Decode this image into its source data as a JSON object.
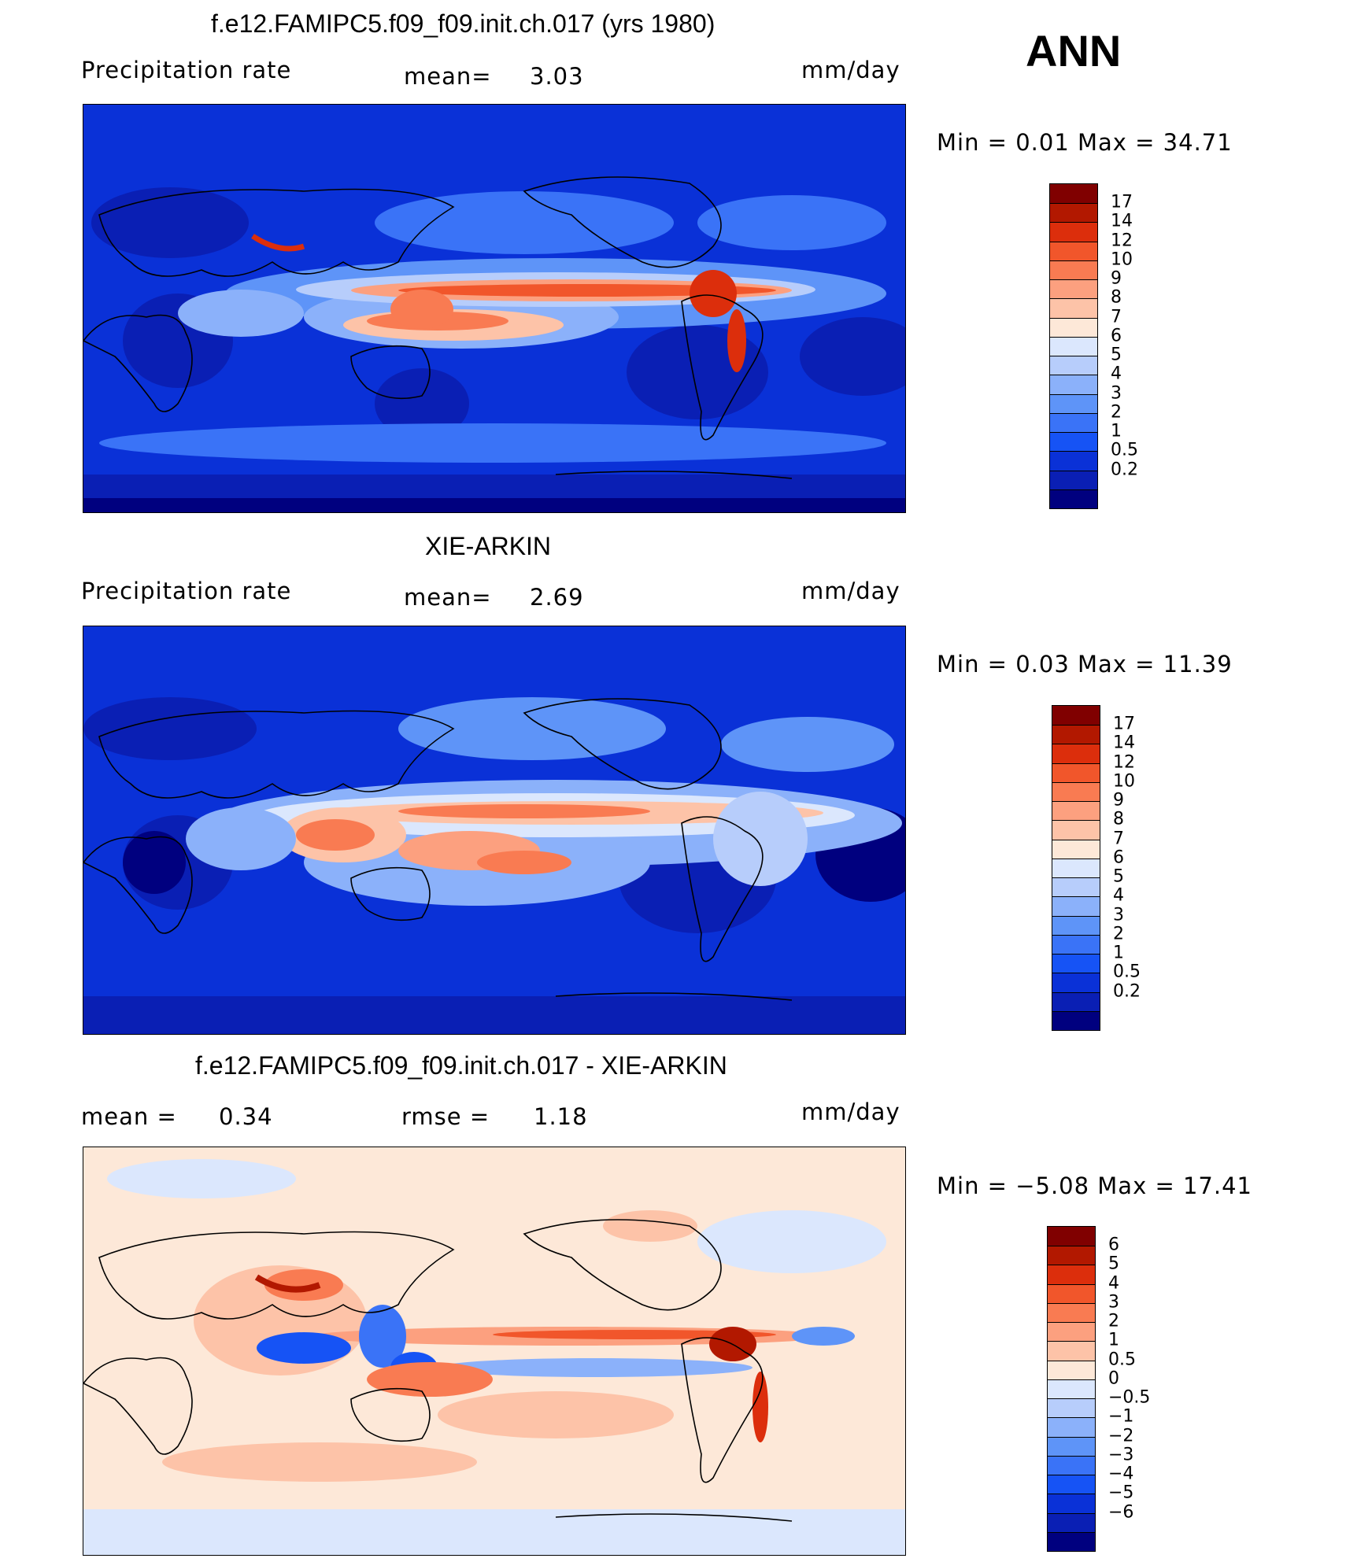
{
  "season": "ANN",
  "units": "mm/day",
  "panels": [
    {
      "id": "model",
      "title": "f.e12.FAMIPC5.f09_f09.init.ch.017 (yrs 1980)",
      "variable": "Precipitation  rate",
      "stat1_label": "mean=",
      "stat1_value": "3.03",
      "units": "mm/day",
      "range_label": "Min  =     0.01  Max  =    34.71",
      "colorbar_labels": [
        "17",
        "14",
        "12",
        "10",
        "9",
        "8",
        "7",
        "6",
        "5",
        "4",
        "3",
        "2",
        "1",
        "0.5",
        "0.2"
      ]
    },
    {
      "id": "obs",
      "title": "XIE-ARKIN",
      "variable": "Precipitation  rate",
      "stat1_label": "mean=",
      "stat1_value": "2.69",
      "units": "mm/day",
      "range_label": "Min  =     0.03  Max  =    11.39",
      "colorbar_labels": [
        "17",
        "14",
        "12",
        "10",
        "9",
        "8",
        "7",
        "6",
        "5",
        "4",
        "3",
        "2",
        "1",
        "0.5",
        "0.2"
      ]
    },
    {
      "id": "diff",
      "title": "f.e12.FAMIPC5.f09_f09.init.ch.017 - XIE-ARKIN",
      "stat1_label": "mean  =",
      "stat1_value": "0.34",
      "stat2_label": "rmse  =",
      "stat2_value": "1.18",
      "units": "mm/day",
      "range_label": "Min  =   −5.08  Max  =    17.41",
      "colorbar_labels": [
        "6",
        "5",
        "4",
        "3",
        "2",
        "1",
        "0.5",
        "0",
        "−0.5",
        "−1",
        "−2",
        "−3",
        "−4",
        "−5",
        "−6"
      ]
    }
  ],
  "chart_data": [
    {
      "type": "heatmap",
      "title": "f.e12.FAMIPC5.f09_f09.init.ch.017 (yrs 1980)",
      "variable": "Precipitation rate",
      "units": "mm/day",
      "mean": 3.03,
      "min": 0.01,
      "max": 34.71,
      "contour_levels": [
        0.2,
        0.5,
        1,
        2,
        3,
        4,
        5,
        6,
        7,
        8,
        9,
        10,
        12,
        14,
        17
      ]
    },
    {
      "type": "heatmap",
      "title": "XIE-ARKIN",
      "variable": "Precipitation rate",
      "units": "mm/day",
      "mean": 2.69,
      "min": 0.03,
      "max": 11.39,
      "contour_levels": [
        0.2,
        0.5,
        1,
        2,
        3,
        4,
        5,
        6,
        7,
        8,
        9,
        10,
        12,
        14,
        17
      ]
    },
    {
      "type": "heatmap",
      "title": "f.e12.FAMIPC5.f09_f09.init.ch.017 - XIE-ARKIN",
      "units": "mm/day",
      "mean": 0.34,
      "rmse": 1.18,
      "min": -5.08,
      "max": 17.41,
      "contour_levels": [
        -6,
        -5,
        -4,
        -3,
        -2,
        -1,
        -0.5,
        0,
        0.5,
        1,
        2,
        3,
        4,
        5,
        6
      ]
    }
  ],
  "colors": {
    "precip_scale": [
      "#00007f",
      "#0a1fb4",
      "#0a31d7",
      "#1653f5",
      "#3a73f7",
      "#5e94f8",
      "#8bb1fa",
      "#b7cdfb",
      "#dbe7fd",
      "#fde8d8",
      "#fdc3a8",
      "#fca07f",
      "#f97b52",
      "#f1562b",
      "#dc2e0c",
      "#b21800",
      "#800000"
    ],
    "diff_scale": [
      "#00007f",
      "#0a1fb4",
      "#0a31d7",
      "#1653f5",
      "#3a73f7",
      "#5e94f8",
      "#8bb1fa",
      "#b7cdfb",
      "#dbe7fd",
      "#fde8d8",
      "#fdc3a8",
      "#fca07f",
      "#f97b52",
      "#f1562b",
      "#dc2e0c",
      "#b21800",
      "#800000"
    ]
  }
}
